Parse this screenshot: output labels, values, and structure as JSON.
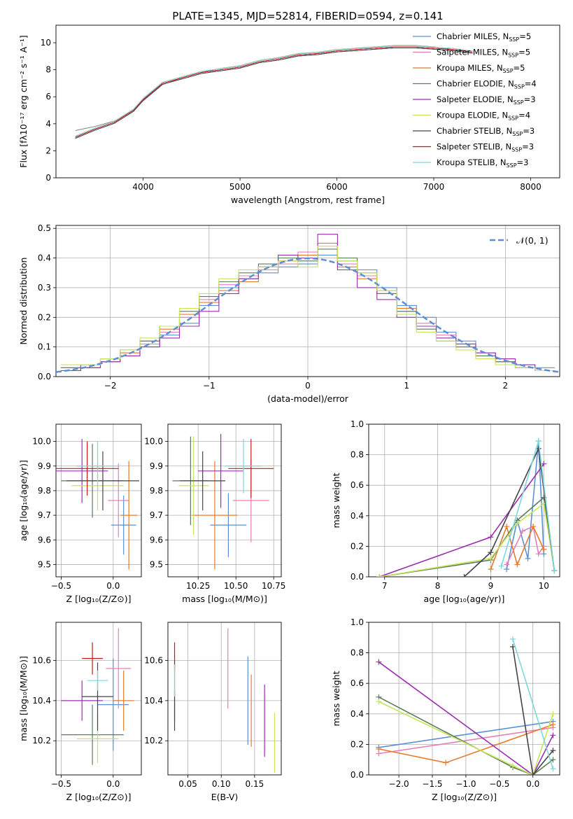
{
  "figure": {
    "title": "PLATE=1345, MJD=52814, FIBERID=0594, z=0.141"
  },
  "legend_entries": [
    {
      "label": "Chabrier MILES, N",
      "sub": "SSP",
      "suffix": "=5",
      "color": "#5b8fd6"
    },
    {
      "label": "Salpeter MILES, N",
      "sub": "SSP",
      "suffix": "=5",
      "color": "#e77fb7"
    },
    {
      "label": "Kroupa MILES, N",
      "sub": "SSP",
      "suffix": "=5",
      "color": "#e87a2a"
    },
    {
      "label": "Chabrier ELODIE, N",
      "sub": "SSP",
      "suffix": "=4",
      "color": "#5a7d5a"
    },
    {
      "label": "Salpeter ELODIE, N",
      "sub": "SSP",
      "suffix": "=3",
      "color": "#9b2fb0"
    },
    {
      "label": "Kroupa ELODIE, N",
      "sub": "SSP",
      "suffix": "=4",
      "color": "#c8e45a"
    },
    {
      "label": "Chabrier STELIB, N",
      "sub": "SSP",
      "suffix": "=3",
      "color": "#444444"
    },
    {
      "label": "Salpeter STELIB, N",
      "sub": "SSP",
      "suffix": "=3",
      "color": "#c21a1a"
    },
    {
      "label": "Kroupa STELIB, N",
      "sub": "SSP",
      "suffix": "=3",
      "color": "#7fd6dc"
    }
  ],
  "chart_data": [
    {
      "id": "spectrum",
      "type": "line",
      "xlabel": "wavelength [Angstrom, rest frame]",
      "ylabel": "Flux [fλ10⁻¹⁷ erg cm⁻² s⁻¹ A⁻¹]",
      "xlim": [
        3100,
        8300
      ],
      "ylim": [
        0,
        11.3
      ],
      "xticks": [
        4000,
        5000,
        6000,
        7000,
        8000
      ],
      "yticks": [
        0,
        2,
        4,
        6,
        8,
        10
      ],
      "data_x": [
        3300,
        3500,
        3700,
        3900,
        4000,
        4200,
        4400,
        4600,
        4800,
        5000,
        5200,
        5400,
        5600,
        5800,
        6000,
        6200,
        6400,
        6600,
        6800,
        7000,
        7200,
        7400
      ],
      "data_y": [
        3.5,
        3.8,
        4.2,
        5.0,
        5.7,
        6.9,
        7.4,
        7.8,
        8.1,
        8.3,
        8.7,
        8.9,
        9.2,
        9.3,
        9.5,
        9.6,
        9.7,
        9.8,
        9.8,
        9.7,
        9.5,
        9.4
      ],
      "model_x": [
        3300,
        3500,
        3700,
        3900,
        4000,
        4200,
        4400,
        4600,
        4800,
        5000,
        5200,
        5400,
        5600,
        5800,
        6000,
        6200,
        6400,
        6600,
        6800,
        7000,
        7200,
        7400
      ],
      "model_y": [
        3.0,
        3.6,
        4.1,
        5.0,
        5.8,
        7.0,
        7.4,
        7.8,
        8.0,
        8.2,
        8.6,
        8.8,
        9.1,
        9.2,
        9.4,
        9.5,
        9.6,
        9.7,
        9.7,
        9.6,
        9.5,
        9.3
      ],
      "legend": "top-right"
    },
    {
      "id": "residuals",
      "type": "line",
      "xlabel": "(data-model)/error",
      "ylabel": "Normed distribution",
      "xlim": [
        -2.55,
        2.55
      ],
      "ylim": [
        0,
        0.51
      ],
      "xticks": [
        -2,
        -1,
        0,
        1,
        2
      ],
      "xtick_labels": [
        "−2",
        "−1",
        "0",
        "1",
        "2"
      ],
      "yticks": [
        0.0,
        0.1,
        0.2,
        0.3,
        0.4,
        0.5
      ],
      "ytick_labels": [
        "0.0",
        "0.1",
        "0.2",
        "0.3",
        "0.4",
        "0.5"
      ],
      "normal_label": "𝒩(0, 1)",
      "legend": "top-right",
      "bins": [
        -2.5,
        -2.3,
        -2.1,
        -1.9,
        -1.7,
        -1.5,
        -1.3,
        -1.1,
        -0.9,
        -0.7,
        -0.5,
        -0.3,
        -0.1,
        0.1,
        0.3,
        0.5,
        0.7,
        0.9,
        1.1,
        1.3,
        1.5,
        1.7,
        1.9,
        2.1,
        2.3,
        2.5
      ],
      "hist_values": [
        [
          0.02,
          0.03,
          0.05,
          0.07,
          0.1,
          0.14,
          0.18,
          0.24,
          0.3,
          0.33,
          0.35,
          0.37,
          0.38,
          0.41,
          0.39,
          0.36,
          0.3,
          0.24,
          0.2,
          0.15,
          0.12,
          0.08,
          0.06,
          0.04,
          0.03
        ],
        [
          0.03,
          0.04,
          0.06,
          0.08,
          0.11,
          0.15,
          0.2,
          0.26,
          0.31,
          0.34,
          0.36,
          0.38,
          0.42,
          0.44,
          0.38,
          0.34,
          0.29,
          0.22,
          0.18,
          0.14,
          0.11,
          0.08,
          0.05,
          0.03,
          0.02
        ],
        [
          0.02,
          0.03,
          0.05,
          0.08,
          0.12,
          0.16,
          0.21,
          0.25,
          0.29,
          0.32,
          0.37,
          0.39,
          0.41,
          0.45,
          0.37,
          0.33,
          0.28,
          0.23,
          0.17,
          0.13,
          0.1,
          0.07,
          0.05,
          0.03,
          0.02
        ],
        [
          0.03,
          0.04,
          0.06,
          0.09,
          0.12,
          0.17,
          0.22,
          0.27,
          0.32,
          0.35,
          0.38,
          0.4,
          0.39,
          0.43,
          0.4,
          0.35,
          0.28,
          0.22,
          0.16,
          0.12,
          0.1,
          0.07,
          0.05,
          0.03,
          0.02
        ],
        [
          0.02,
          0.03,
          0.05,
          0.07,
          0.1,
          0.13,
          0.17,
          0.22,
          0.28,
          0.33,
          0.37,
          0.41,
          0.4,
          0.48,
          0.36,
          0.3,
          0.26,
          0.2,
          0.17,
          0.13,
          0.11,
          0.08,
          0.06,
          0.04,
          0.02
        ],
        [
          0.04,
          0.04,
          0.06,
          0.09,
          0.13,
          0.17,
          0.23,
          0.28,
          0.33,
          0.36,
          0.37,
          0.39,
          0.37,
          0.44,
          0.39,
          0.35,
          0.29,
          0.21,
          0.15,
          0.12,
          0.09,
          0.06,
          0.04,
          0.03,
          0.02
        ]
      ],
      "hist_colors": [
        "#5b8fd6",
        "#e77fb7",
        "#e87a2a",
        "#5a7d5a",
        "#9b2fb0",
        "#c8e45a"
      ]
    },
    {
      "id": "age-vs-Z",
      "type": "scatter",
      "xlabel": "Z [log₁₀(Z/Z⊙)]",
      "ylabel": "age  [log₁₀(age/yr)]",
      "xlim": [
        -0.55,
        0.27
      ],
      "ylim": [
        9.45,
        10.07
      ],
      "xticks": [
        -0.5,
        0.0
      ],
      "xtick_labels": [
        "−0.5",
        "0.0"
      ],
      "yticks": [
        9.5,
        9.6,
        9.7,
        9.8,
        9.9,
        10.0
      ],
      "ytick_labels": [
        "9.5",
        "9.6",
        "9.7",
        "9.8",
        "9.9",
        "10.0"
      ],
      "points": [
        {
          "x": 0.1,
          "y": 9.66,
          "xerr": 0.12,
          "yerr": 0.12,
          "color": "#5b8fd6"
        },
        {
          "x": 0.05,
          "y": 9.76,
          "xerr": 0.1,
          "yerr": 0.15,
          "color": "#e77fb7"
        },
        {
          "x": 0.15,
          "y": 9.7,
          "xerr": 0.08,
          "yerr": 0.22,
          "color": "#e87a2a"
        },
        {
          "x": -0.2,
          "y": 9.84,
          "xerr": 0.3,
          "yerr": 0.15,
          "color": "#5a7d5a"
        },
        {
          "x": -0.3,
          "y": 9.88,
          "xerr": 0.25,
          "yerr": 0.13,
          "color": "#9b2fb0"
        },
        {
          "x": -0.15,
          "y": 9.82,
          "xerr": 0.25,
          "yerr": 0.1,
          "color": "#c8e45a"
        },
        {
          "x": -0.1,
          "y": 9.84,
          "xerr": 0.35,
          "yerr": 0.12,
          "color": "#444444"
        },
        {
          "x": -0.25,
          "y": 9.89,
          "xerr": 0.3,
          "yerr": 0.11,
          "color": "#c21a1a"
        },
        {
          "x": -0.15,
          "y": 9.9,
          "xerr": 0.2,
          "yerr": 0.1,
          "color": "#7fd6dc"
        }
      ]
    },
    {
      "id": "age-vs-mass",
      "type": "scatter",
      "xlabel": "mass [log₁₀(M/M⊙)]",
      "ylabel": "",
      "xlim": [
        10.05,
        10.8
      ],
      "ylim": [
        9.45,
        10.07
      ],
      "xticks": [
        10.25,
        10.5,
        10.75
      ],
      "xtick_labels": [
        "10.25",
        "10.50",
        "10.75"
      ],
      "yticks": [
        9.5,
        9.6,
        9.7,
        9.8,
        9.9,
        10.0
      ],
      "ytick_labels": [
        "9.5",
        "9.6",
        "9.7",
        "9.8",
        "9.9",
        "10.0"
      ],
      "points": [
        {
          "x": 10.45,
          "y": 9.66,
          "xerr": 0.12,
          "yerr": 0.13,
          "color": "#5b8fd6"
        },
        {
          "x": 10.6,
          "y": 9.76,
          "xerr": 0.12,
          "yerr": 0.17,
          "color": "#e77fb7"
        },
        {
          "x": 10.36,
          "y": 9.7,
          "xerr": 0.15,
          "yerr": 0.22,
          "color": "#e87a2a"
        },
        {
          "x": 10.2,
          "y": 9.84,
          "xerr": 0.12,
          "yerr": 0.18,
          "color": "#5a7d5a"
        },
        {
          "x": 10.4,
          "y": 9.88,
          "xerr": 0.15,
          "yerr": 0.15,
          "color": "#9b2fb0"
        },
        {
          "x": 10.22,
          "y": 9.82,
          "xerr": 0.1,
          "yerr": 0.2,
          "color": "#c8e45a"
        },
        {
          "x": 10.28,
          "y": 9.84,
          "xerr": 0.15,
          "yerr": 0.12,
          "color": "#444444"
        },
        {
          "x": 10.6,
          "y": 9.89,
          "xerr": 0.15,
          "yerr": 0.12,
          "color": "#c21a1a"
        },
        {
          "x": 10.55,
          "y": 9.9,
          "xerr": 0.12,
          "yerr": 0.11,
          "color": "#7fd6dc"
        }
      ]
    },
    {
      "id": "weight-vs-age",
      "type": "line",
      "xlabel": "age  [log₁₀(age/yr)]",
      "ylabel": "mass weight",
      "xlim": [
        6.7,
        10.3
      ],
      "ylim": [
        0,
        1.0
      ],
      "xticks": [
        7,
        8,
        9,
        10
      ],
      "yticks": [
        0.0,
        0.2,
        0.4,
        0.6,
        0.8,
        1.0
      ],
      "ytick_labels": [
        "0.0",
        "0.2",
        "0.4",
        "0.6",
        "0.8",
        "1.0"
      ],
      "series": [
        {
          "color": "#5b8fd6",
          "x": [
            9.3,
            9.5,
            9.7,
            9.9,
            10.0
          ],
          "y": [
            0.05,
            0.37,
            0.12,
            0.89,
            0.15
          ]
        },
        {
          "color": "#e77fb7",
          "x": [
            9.3,
            9.6,
            9.8,
            9.9,
            10.0
          ],
          "y": [
            0.08,
            0.3,
            0.33,
            0.15,
            0.2
          ]
        },
        {
          "color": "#e87a2a",
          "x": [
            9.0,
            9.3,
            9.5,
            9.8,
            10.0
          ],
          "y": [
            0.05,
            0.33,
            0.08,
            0.33,
            0.18
          ]
        },
        {
          "color": "#5a7d5a",
          "x": [
            6.9,
            9.0,
            9.5,
            10.0,
            10.2
          ],
          "y": [
            0.0,
            0.11,
            0.37,
            0.52,
            0.04
          ]
        },
        {
          "color": "#9b2fb0",
          "x": [
            6.9,
            9.0,
            10.0
          ],
          "y": [
            0.0,
            0.26,
            0.74
          ]
        },
        {
          "color": "#c8e45a",
          "x": [
            6.9,
            9.0,
            9.5,
            10.0,
            10.2
          ],
          "y": [
            0.0,
            0.12,
            0.35,
            0.48,
            0.04
          ]
        },
        {
          "color": "#444444",
          "x": [
            8.5,
            9.0,
            9.9,
            10.2
          ],
          "y": [
            0.0,
            0.16,
            0.84,
            0.04
          ]
        },
        {
          "color": "#7fd6dc",
          "x": [
            9.2,
            9.9,
            10.2
          ],
          "y": [
            0.07,
            0.89,
            0.04
          ]
        }
      ]
    },
    {
      "id": "mass-vs-Z",
      "type": "scatter",
      "xlabel": "Z [log₁₀(Z/Z⊙)]",
      "ylabel": "mass [log₁₀(M/M⊙)]",
      "xlim": [
        -0.55,
        0.27
      ],
      "ylim": [
        10.03,
        10.79
      ],
      "xticks": [
        -0.5,
        0.0
      ],
      "xtick_labels": [
        "−0.5",
        "0.0"
      ],
      "yticks": [
        10.2,
        10.4,
        10.6
      ],
      "ytick_labels": [
        "10.2",
        "10.4",
        "10.6"
      ],
      "points": [
        {
          "x": 0.0,
          "y": 10.38,
          "xerr": 0.15,
          "yerr": 0.23,
          "color": "#5b8fd6"
        },
        {
          "x": 0.05,
          "y": 10.56,
          "xerr": 0.12,
          "yerr": 0.2,
          "color": "#e77fb7"
        },
        {
          "x": 0.1,
          "y": 10.4,
          "xerr": 0.1,
          "yerr": 0.15,
          "color": "#e87a2a"
        },
        {
          "x": -0.2,
          "y": 10.23,
          "xerr": 0.3,
          "yerr": 0.15,
          "color": "#5a7d5a"
        },
        {
          "x": -0.3,
          "y": 10.4,
          "xerr": 0.2,
          "yerr": 0.1,
          "color": "#9b2fb0"
        },
        {
          "x": -0.15,
          "y": 10.21,
          "xerr": 0.2,
          "yerr": 0.12,
          "color": "#c8e45a"
        },
        {
          "x": -0.15,
          "y": 10.42,
          "xerr": 0.15,
          "yerr": 0.17,
          "color": "#444444"
        },
        {
          "x": -0.2,
          "y": 10.61,
          "xerr": 0.1,
          "yerr": 0.08,
          "color": "#c21a1a"
        },
        {
          "x": -0.15,
          "y": 10.5,
          "xerr": 0.1,
          "yerr": 0.05,
          "color": "#7fd6dc"
        }
      ]
    },
    {
      "id": "mass-vs-EBV",
      "type": "scatter",
      "xlabel": "E(B-V)",
      "ylabel": "",
      "xlim": [
        0.02,
        0.19
      ],
      "ylim": [
        10.03,
        10.79
      ],
      "xticks": [
        0.05,
        0.1,
        0.15
      ],
      "xtick_labels": [
        "0.05",
        "0.10",
        "0.15"
      ],
      "yticks": [
        10.2,
        10.4,
        10.6
      ],
      "ytick_labels": [
        "10.2",
        "10.4",
        "10.6"
      ],
      "points": [
        {
          "x": 0.14,
          "y": 10.4,
          "xerr": 0.0,
          "yerr": 0.22,
          "color": "#5b8fd6"
        },
        {
          "x": 0.11,
          "y": 10.56,
          "xerr": 0.0,
          "yerr": 0.2,
          "color": "#e77fb7"
        },
        {
          "x": 0.145,
          "y": 10.35,
          "xerr": 0.0,
          "yerr": 0.18,
          "color": "#e87a2a"
        },
        {
          "x": 0.03,
          "y": 10.45,
          "xerr": 0.0,
          "yerr": 0.15,
          "color": "#5a7d5a"
        },
        {
          "x": 0.165,
          "y": 10.3,
          "xerr": 0.0,
          "yerr": 0.18,
          "color": "#9b2fb0"
        },
        {
          "x": 0.18,
          "y": 10.19,
          "xerr": 0.0,
          "yerr": 0.15,
          "color": "#c8e45a"
        },
        {
          "x": 0.03,
          "y": 10.35,
          "xerr": 0.0,
          "yerr": 0.1,
          "color": "#444444"
        },
        {
          "x": 0.03,
          "y": 10.62,
          "xerr": 0.0,
          "yerr": 0.07,
          "color": "#c21a1a"
        },
        {
          "x": 0.03,
          "y": 10.5,
          "xerr": 0.0,
          "yerr": 0.08,
          "color": "#7fd6dc"
        }
      ]
    },
    {
      "id": "weight-vs-Z",
      "type": "line",
      "xlabel": "Z [log₁₀(Z/Z⊙)]",
      "ylabel": "mass weight",
      "xlim": [
        -2.45,
        0.4
      ],
      "ylim": [
        0,
        1.0
      ],
      "xticks": [
        -2.0,
        -1.5,
        -1.0,
        -0.5,
        0.0
      ],
      "xtick_labels": [
        "−2.0",
        "−1.5",
        "−1.0",
        "−0.5",
        "0.0"
      ],
      "yticks": [
        0.0,
        0.2,
        0.4,
        0.6,
        0.8,
        1.0
      ],
      "ytick_labels": [
        "0.0",
        "0.2",
        "0.4",
        "0.6",
        "0.8",
        "1.0"
      ],
      "series": [
        {
          "color": "#5b8fd6",
          "x": [
            -2.3,
            0.3
          ],
          "y": [
            0.18,
            0.35
          ]
        },
        {
          "color": "#e77fb7",
          "x": [
            -2.3,
            0.3
          ],
          "y": [
            0.14,
            0.31
          ]
        },
        {
          "color": "#e87a2a",
          "x": [
            -2.3,
            -1.3,
            0.3
          ],
          "y": [
            0.17,
            0.08,
            0.33
          ]
        },
        {
          "color": "#5a7d5a",
          "x": [
            -2.3,
            -0.3,
            0.0,
            0.3
          ],
          "y": [
            0.51,
            0.05,
            0.0,
            0.1
          ]
        },
        {
          "color": "#9b2fb0",
          "x": [
            -2.3,
            0.0,
            0.3
          ],
          "y": [
            0.74,
            0.0,
            0.26
          ]
        },
        {
          "color": "#c8e45a",
          "x": [
            -2.3,
            -0.3,
            0.0,
            0.3
          ],
          "y": [
            0.48,
            0.06,
            0.0,
            0.4
          ]
        },
        {
          "color": "#444444",
          "x": [
            -0.3,
            0.0,
            0.3
          ],
          "y": [
            0.84,
            0.0,
            0.16
          ]
        },
        {
          "color": "#7fd6dc",
          "x": [
            -0.3,
            0.3
          ],
          "y": [
            0.89,
            0.04
          ]
        }
      ]
    }
  ]
}
